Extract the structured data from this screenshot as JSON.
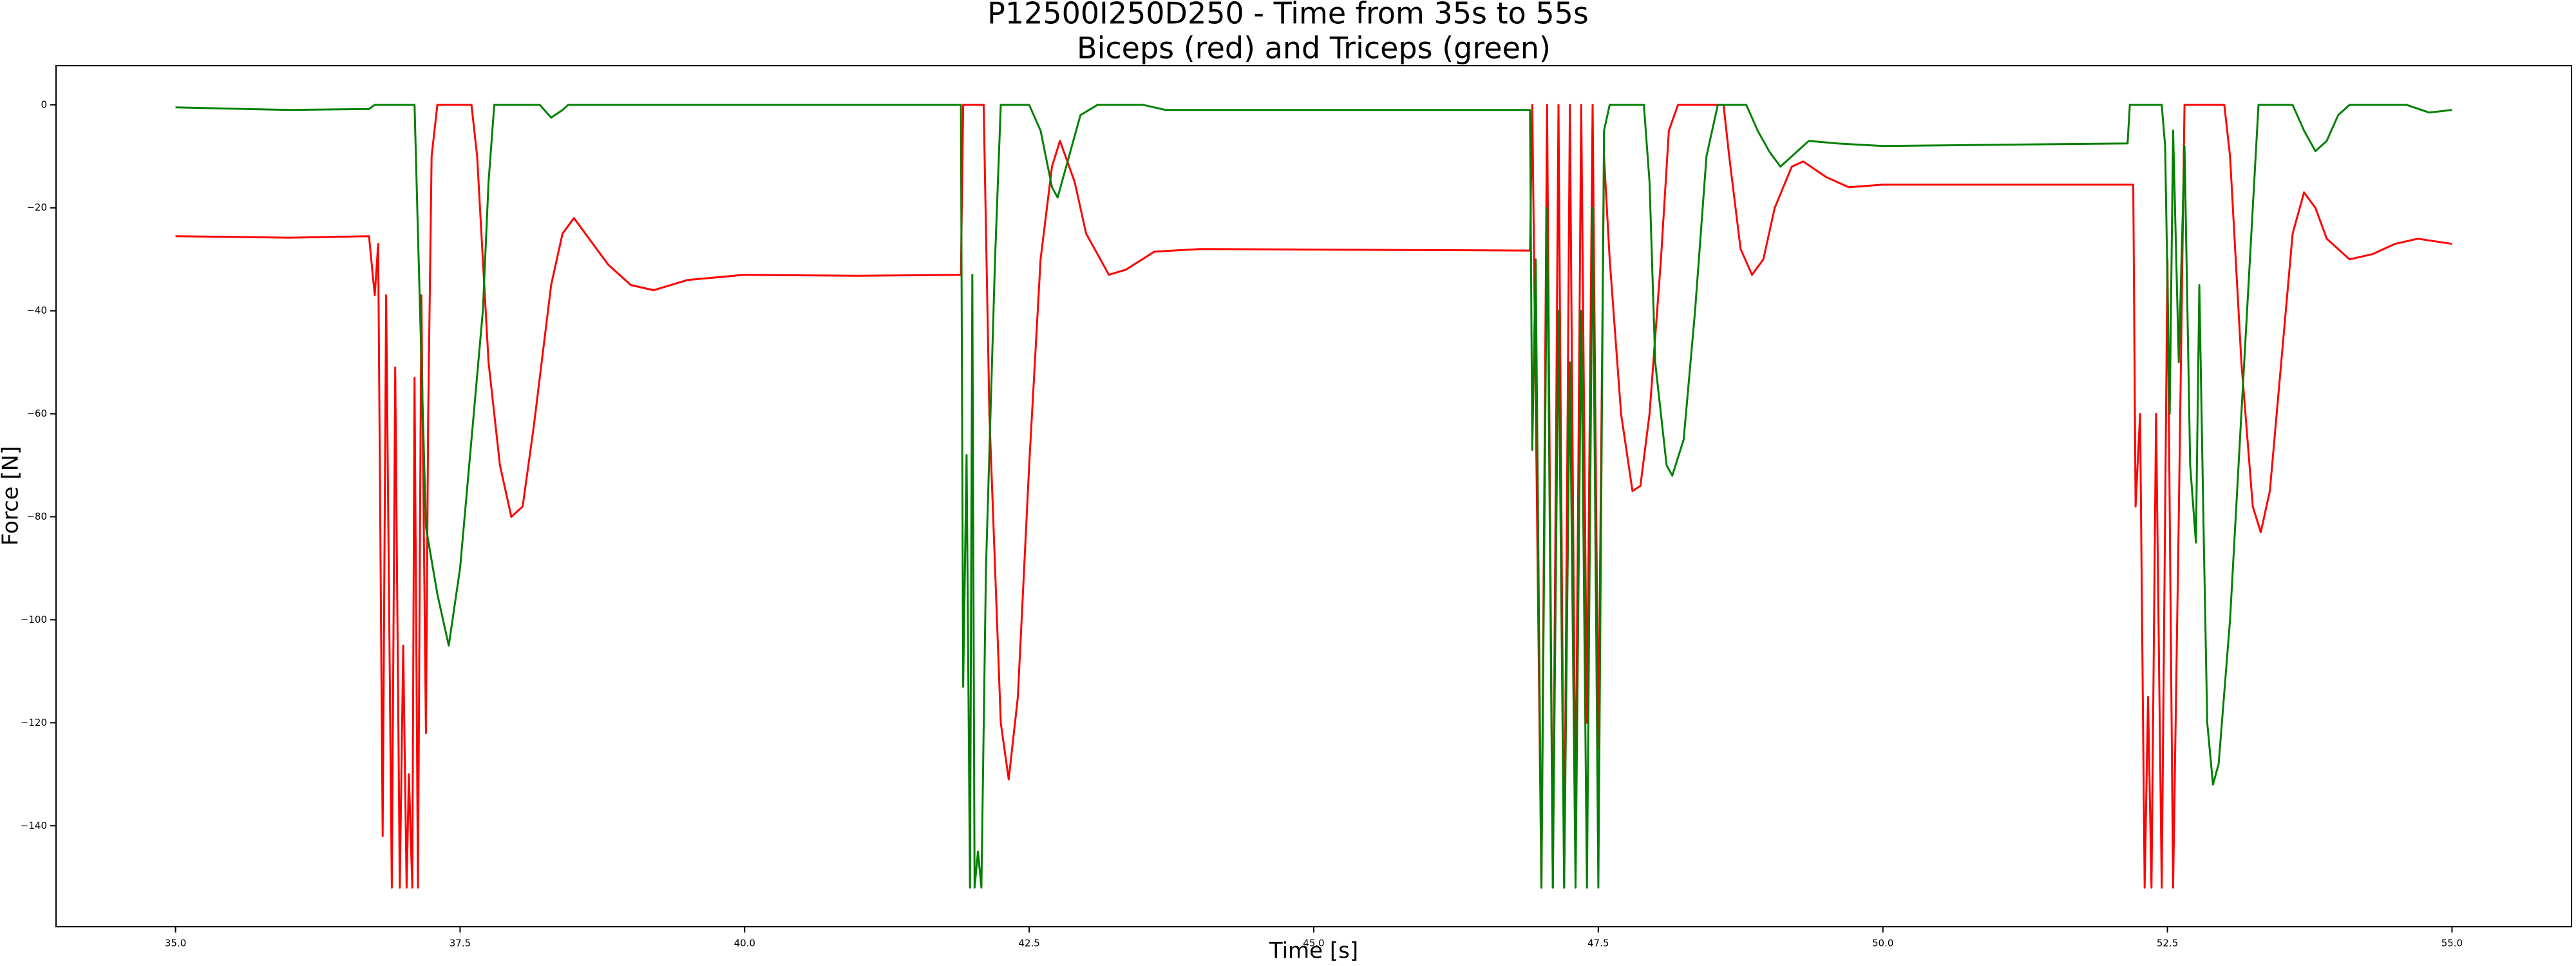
{
  "chart_data": {
    "type": "line",
    "title": "P12500I250D250 - Time from 35s to 55s",
    "subtitle": "Biceps (red) and Triceps (green)",
    "xlabel": "Time [s]",
    "ylabel": "Force [N]",
    "xlim": [
      33.95,
      56.05
    ],
    "ylim": [
      -159.6,
      7.6
    ],
    "xticks": [
      {
        "value": 35,
        "label": "35.0"
      },
      {
        "value": 37.5,
        "label": "37.5"
      },
      {
        "value": 40,
        "label": "40.0"
      },
      {
        "value": 42.5,
        "label": "42.5"
      },
      {
        "value": 45,
        "label": "45.0"
      },
      {
        "value": 47.5,
        "label": "47.5"
      },
      {
        "value": 50,
        "label": "50.0"
      },
      {
        "value": 52.5,
        "label": "52.5"
      },
      {
        "value": 55,
        "label": "55.0"
      }
    ],
    "yticks": [
      0,
      {
        "value": -20,
        "label": "−20"
      },
      {
        "value": -40,
        "label": "−40"
      },
      {
        "value": -60,
        "label": "−60"
      },
      {
        "value": -80,
        "label": "−80"
      },
      {
        "value": -100,
        "label": "−100"
      },
      {
        "value": -120,
        "label": "−120"
      },
      {
        "value": -140,
        "label": "−140"
      }
    ],
    "series": [
      {
        "color": "#ff0000",
        "x": [
          35.0,
          36.0,
          36.7,
          36.75,
          36.78,
          36.82,
          36.85,
          36.9,
          36.93,
          36.97,
          37.0,
          37.03,
          37.05,
          37.08,
          37.1,
          37.13,
          37.16,
          37.2,
          37.22,
          37.25,
          37.3,
          37.6,
          37.65,
          37.75,
          37.85,
          37.95,
          38.05,
          38.15,
          38.3,
          38.4,
          38.5,
          38.6,
          38.8,
          39.0,
          39.2,
          39.5,
          40.0,
          41.0,
          41.9,
          41.92,
          42.1,
          42.15,
          42.25,
          42.32,
          42.4,
          42.5,
          42.6,
          42.7,
          42.77,
          42.9,
          43.0,
          43.2,
          43.35,
          43.6,
          44.0,
          46.9,
          46.92,
          47.0,
          47.05,
          47.1,
          47.15,
          47.2,
          47.25,
          47.3,
          47.35,
          47.4,
          47.45,
          47.5,
          47.55,
          47.6,
          47.7,
          47.8,
          47.87,
          47.95,
          48.05,
          48.12,
          48.2,
          48.6,
          48.65,
          48.75,
          48.85,
          48.95,
          49.05,
          49.2,
          49.3,
          49.5,
          49.7,
          50.0,
          52.2,
          52.22,
          52.26,
          52.3,
          52.33,
          52.36,
          52.4,
          52.45,
          52.5,
          52.55,
          52.6,
          52.65,
          53.0,
          53.05,
          53.15,
          53.25,
          53.32,
          53.4,
          53.5,
          53.6,
          53.7,
          53.8,
          53.9,
          54.1,
          54.3,
          54.5,
          54.7,
          55.0
        ],
        "values": [
          -25.5,
          -25.8,
          -25.5,
          -37,
          -27,
          -142,
          -37,
          -152,
          -51,
          -152,
          -105,
          -152,
          -130,
          -152,
          -53,
          -152,
          -37,
          -122,
          -60,
          -10,
          0,
          0,
          -10,
          -50,
          -70,
          -80,
          -78,
          -62,
          -35,
          -25,
          -22,
          -25,
          -31,
          -35,
          -36,
          -34,
          -33,
          -33.2,
          -33,
          0,
          0,
          -60,
          -120,
          -131,
          -115,
          -70,
          -30,
          -12,
          -7,
          -15,
          -25,
          -33,
          -32,
          -28.5,
          -28,
          -28.3,
          0,
          -152,
          0,
          -152,
          0,
          -152,
          0,
          -140,
          0,
          -120,
          0,
          -125,
          -10,
          -30,
          -60,
          -75,
          -74,
          -60,
          -30,
          -5,
          0,
          0,
          -10,
          -28,
          -33,
          -30,
          -20,
          -12,
          -11,
          -14,
          -16,
          -15.5,
          -15.5,
          -78,
          -60,
          -152,
          -115,
          -152,
          -60,
          -152,
          -30,
          -152,
          -80,
          0,
          0,
          -10,
          -50,
          -78,
          -83,
          -75,
          -50,
          -25,
          -17,
          -20,
          -26,
          -30,
          -29,
          -27,
          -26,
          -27
        ]
      },
      {
        "color": "#008000",
        "x": [
          35.0,
          36.0,
          36.7,
          36.75,
          37.1,
          37.13,
          37.2,
          37.3,
          37.4,
          37.5,
          37.6,
          37.7,
          37.75,
          37.8,
          38.2,
          38.3,
          38.4,
          38.45,
          41.9,
          41.92,
          41.95,
          41.98,
          42.0,
          42.02,
          42.05,
          42.08,
          42.12,
          42.2,
          42.25,
          42.5,
          42.6,
          42.7,
          42.75,
          42.85,
          42.95,
          43.1,
          43.5,
          43.7,
          46.9,
          46.92,
          46.95,
          47.0,
          47.05,
          47.1,
          47.15,
          47.2,
          47.25,
          47.3,
          47.35,
          47.4,
          47.45,
          47.5,
          47.55,
          47.6,
          47.9,
          47.95,
          48.0,
          48.1,
          48.15,
          48.25,
          48.35,
          48.45,
          48.55,
          48.8,
          48.9,
          49.0,
          49.1,
          49.2,
          49.35,
          49.6,
          50.0,
          52.15,
          52.17,
          52.45,
          52.48,
          52.52,
          52.55,
          52.6,
          52.65,
          52.7,
          52.75,
          52.78,
          52.82,
          52.85,
          52.9,
          52.95,
          53.05,
          53.15,
          53.25,
          53.3,
          53.6,
          53.7,
          53.8,
          53.9,
          54.0,
          54.1,
          54.6,
          54.8,
          55.0
        ],
        "values": [
          -0.5,
          -1,
          -0.8,
          0,
          0,
          -25,
          -82,
          -95,
          -105,
          -90,
          -65,
          -40,
          -15,
          0,
          0,
          -2.5,
          -1,
          0,
          0,
          -113,
          -68,
          -152,
          -33,
          -152,
          -145,
          -152,
          -90,
          -30,
          0,
          0,
          -5,
          -16,
          -18,
          -10,
          -2,
          0,
          0,
          -1,
          -1,
          -67,
          -30,
          -152,
          -20,
          -152,
          -40,
          -152,
          -50,
          -152,
          -40,
          -152,
          -20,
          -152,
          -5,
          0,
          0,
          -15,
          -50,
          -70,
          -72,
          -65,
          -40,
          -10,
          0,
          0,
          -5,
          -9,
          -12,
          -10,
          -7,
          -7.5,
          -8,
          -7.5,
          0,
          0,
          -8,
          -60,
          -5,
          -50,
          -8,
          -70,
          -85,
          -35,
          -85,
          -120,
          -132,
          -128,
          -100,
          -60,
          -20,
          0,
          0,
          -5,
          -9,
          -7,
          -2,
          0,
          0,
          -1.5,
          -1
        ]
      }
    ]
  }
}
